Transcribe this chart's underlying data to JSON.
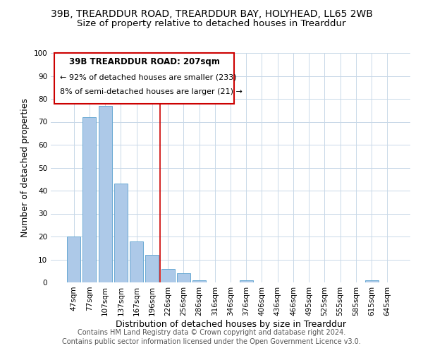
{
  "title": "39B, TREARDDUR ROAD, TREARDDUR BAY, HOLYHEAD, LL65 2WB",
  "subtitle": "Size of property relative to detached houses in Trearddur",
  "xlabel": "Distribution of detached houses by size in Trearddur",
  "ylabel": "Number of detached properties",
  "bar_labels": [
    "47sqm",
    "77sqm",
    "107sqm",
    "137sqm",
    "167sqm",
    "196sqm",
    "226sqm",
    "256sqm",
    "286sqm",
    "316sqm",
    "346sqm",
    "376sqm",
    "406sqm",
    "436sqm",
    "466sqm",
    "495sqm",
    "525sqm",
    "555sqm",
    "585sqm",
    "615sqm",
    "645sqm"
  ],
  "bar_values": [
    20,
    72,
    77,
    43,
    18,
    12,
    6,
    4,
    1,
    0,
    0,
    1,
    0,
    0,
    0,
    0,
    0,
    0,
    0,
    1,
    0
  ],
  "bar_color": "#adc9e8",
  "bar_edge_color": "#6aaad4",
  "vline_x": 5.5,
  "vline_color": "#cc0000",
  "ylim": [
    0,
    100
  ],
  "yticks": [
    0,
    10,
    20,
    30,
    40,
    50,
    60,
    70,
    80,
    90,
    100
  ],
  "annotation_title": "39B TREARDDUR ROAD: 207sqm",
  "annotation_line1": "← 92% of detached houses are smaller (233)",
  "annotation_line2": "8% of semi-detached houses are larger (21) →",
  "footer_line1": "Contains HM Land Registry data © Crown copyright and database right 2024.",
  "footer_line2": "Contains public sector information licensed under the Open Government Licence v3.0.",
  "bg_color": "#ffffff",
  "grid_color": "#c8d8e8",
  "title_fontsize": 10,
  "subtitle_fontsize": 9.5,
  "axis_label_fontsize": 9,
  "tick_fontsize": 7.5,
  "footer_fontsize": 7
}
